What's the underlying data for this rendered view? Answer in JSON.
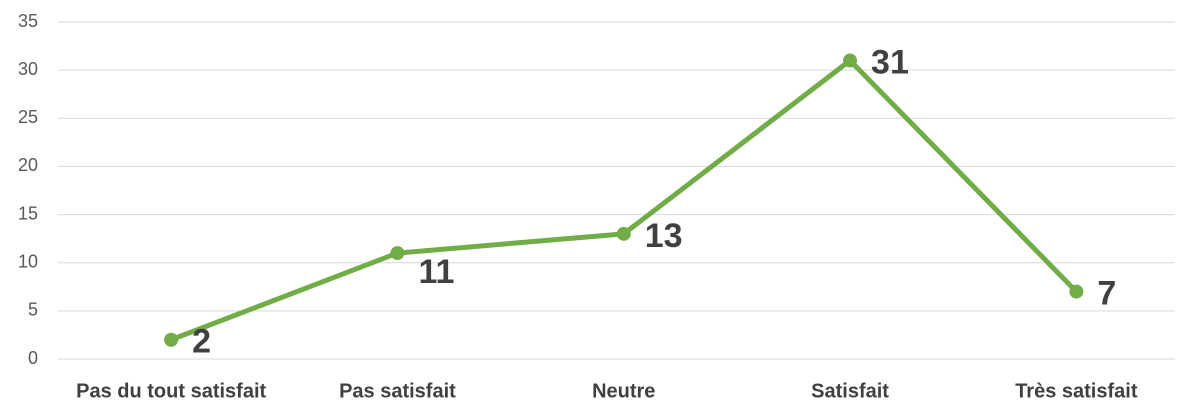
{
  "chart_data": {
    "type": "line",
    "categories": [
      "Pas du tout satisfait",
      "Pas satisfait",
      "Neutre",
      "Satisfait",
      "Très satisfait"
    ],
    "values": [
      2,
      11,
      13,
      31,
      7
    ],
    "color": "#70ad47",
    "ylim": [
      0,
      35
    ],
    "yticks": [
      0,
      5,
      10,
      15,
      20,
      25,
      30,
      35
    ],
    "grid": true
  }
}
